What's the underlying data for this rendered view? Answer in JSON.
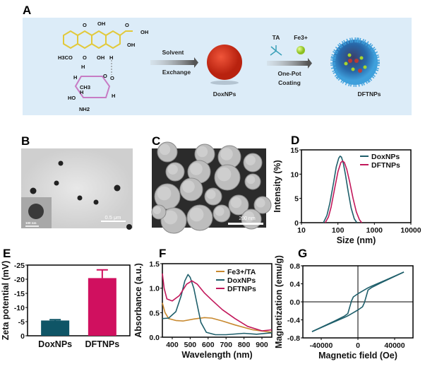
{
  "panels": {
    "A": {
      "label": "A",
      "molecule_atoms": [
        "O",
        "OH",
        "O",
        "OH",
        "OH",
        "H3CO",
        "O",
        "OH",
        "H",
        "H",
        "H",
        "CH3",
        "H",
        "HO",
        "NH2",
        "O",
        "O",
        "H"
      ],
      "step1": [
        "Solvent",
        "Exchange"
      ],
      "intermediate": "DoxNPs",
      "reagents": [
        "TA",
        "Fe3+"
      ],
      "step2": [
        "One-Pot",
        "Coating"
      ],
      "product": "DFTNPs",
      "colors": {
        "background": "#dcecf8",
        "doxorubicin": "#e2c93a",
        "sugar": "#c77cc4",
        "doxnp": "#d9331f",
        "dftnp": "#2e7fbf",
        "fe": "#a6d52e",
        "ta": "#3aa0b8"
      }
    },
    "B": {
      "label": "B",
      "scale_bar": "0.5 μm",
      "inset_scale_bar": "100 nm"
    },
    "C": {
      "label": "C",
      "scale_bar": "200 nm"
    }
  },
  "chart_data": [
    {
      "panel": "D",
      "type": "line",
      "xscale": "log",
      "xlabel": "Size (nm)",
      "ylabel": "Intensity (%)",
      "xlim": [
        10,
        10000
      ],
      "ylim": [
        0,
        15
      ],
      "xticks": [
        "10",
        "100",
        "1000",
        "10000"
      ],
      "yticks": [
        "0",
        "5",
        "10",
        "15"
      ],
      "legend": "top-right",
      "series": [
        {
          "name": "DoxNPs",
          "color": "#1f5f6b",
          "x": [
            40,
            50,
            60,
            75,
            90,
            105,
            115,
            125,
            140,
            160,
            190,
            230,
            280,
            330
          ],
          "y": [
            0,
            1.5,
            4.0,
            8.0,
            11.5,
            13.3,
            13.7,
            13.5,
            12.3,
            10.0,
            6.5,
            3.0,
            0.8,
            0
          ]
        },
        {
          "name": "DFTNPs",
          "color": "#c2185b",
          "x": [
            45,
            55,
            65,
            80,
            100,
            120,
            135,
            150,
            175,
            210,
            260,
            320,
            390,
            450
          ],
          "y": [
            0,
            1.2,
            3.2,
            6.8,
            10.5,
            12.4,
            12.7,
            12.4,
            11.0,
            8.4,
            5.0,
            2.2,
            0.6,
            0
          ]
        }
      ]
    },
    {
      "panel": "E",
      "type": "bar",
      "ylabel": "Zeta potential (mV)",
      "categories": [
        "DoxNPs",
        "DFTNPs"
      ],
      "values": [
        -5.4,
        -20.4
      ],
      "errors": [
        0.3,
        2.9
      ],
      "colors": [
        "#0f5566",
        "#d0105f"
      ],
      "ylim": [
        0,
        -25
      ],
      "yticks": [
        "0",
        "-5",
        "-10",
        "-15",
        "-20",
        "-25"
      ]
    },
    {
      "panel": "F",
      "type": "line",
      "xlabel": "Wavelength (nm)",
      "ylabel": "Absorbance (a.u.)",
      "xlim": [
        345,
        955
      ],
      "ylim": [
        0,
        1.5
      ],
      "xticks": [
        "400",
        "500",
        "600",
        "700",
        "800",
        "900"
      ],
      "yticks": [
        "0.0",
        "0.5",
        "1.0",
        "1.5"
      ],
      "legend": "top-right",
      "series": [
        {
          "name": "Fe3+/TA",
          "color": "#c8892f",
          "x": [
            345,
            360,
            380,
            420,
            460,
            520,
            580,
            620,
            680,
            750,
            850,
            955
          ],
          "y": [
            0.7,
            0.5,
            0.38,
            0.34,
            0.33,
            0.37,
            0.4,
            0.39,
            0.33,
            0.25,
            0.15,
            0.1
          ]
        },
        {
          "name": "DoxNPs",
          "color": "#1f5f6b",
          "x": [
            345,
            380,
            420,
            450,
            470,
            488,
            500,
            520,
            540,
            560,
            590,
            640,
            700,
            800,
            870,
            955
          ],
          "y": [
            0.38,
            0.39,
            0.52,
            0.85,
            1.15,
            1.28,
            1.22,
            1.0,
            0.65,
            0.3,
            0.1,
            0.05,
            0.05,
            0.08,
            0.06,
            0.09
          ]
        },
        {
          "name": "DFTNPs",
          "color": "#c2185b",
          "x": [
            345,
            355,
            370,
            400,
            440,
            480,
            510,
            540,
            580,
            620,
            680,
            750,
            820,
            900,
            955
          ],
          "y": [
            1.3,
            1.0,
            0.78,
            0.74,
            0.85,
            1.08,
            1.15,
            1.08,
            0.9,
            0.76,
            0.56,
            0.38,
            0.22,
            0.13,
            0.15
          ]
        }
      ]
    },
    {
      "panel": "G",
      "type": "line",
      "xlabel": "Magnetic field (Oe)",
      "ylabel": "Magnetization (emu/g)",
      "xlim": [
        -60000,
        60000
      ],
      "ylim": [
        -0.8,
        0.8
      ],
      "xticks": [
        "-40000",
        "0",
        "40000"
      ],
      "yticks": [
        "-0.8",
        "-0.4",
        "0.0",
        "0.4",
        "0.8"
      ],
      "series": [
        {
          "color": "#1f5f6b",
          "x": [
            50000,
            30000,
            15000,
            10000,
            5000,
            0,
            -5000,
            -7000,
            -9000,
            -11000,
            -15000,
            -25000,
            -50000
          ],
          "y": [
            0.66,
            0.48,
            0.35,
            0.3,
            0.24,
            0.18,
            0.11,
            0.02,
            -0.12,
            -0.26,
            -0.32,
            -0.42,
            -0.66
          ]
        },
        {
          "color": "#1f5f6b",
          "x": [
            -50000,
            -30000,
            -15000,
            -10000,
            -5000,
            0,
            5000,
            7000,
            9000,
            11000,
            15000,
            25000,
            50000
          ],
          "y": [
            -0.66,
            -0.48,
            -0.35,
            -0.3,
            -0.24,
            -0.18,
            -0.11,
            -0.02,
            0.12,
            0.26,
            0.32,
            0.42,
            0.66
          ]
        }
      ]
    }
  ]
}
